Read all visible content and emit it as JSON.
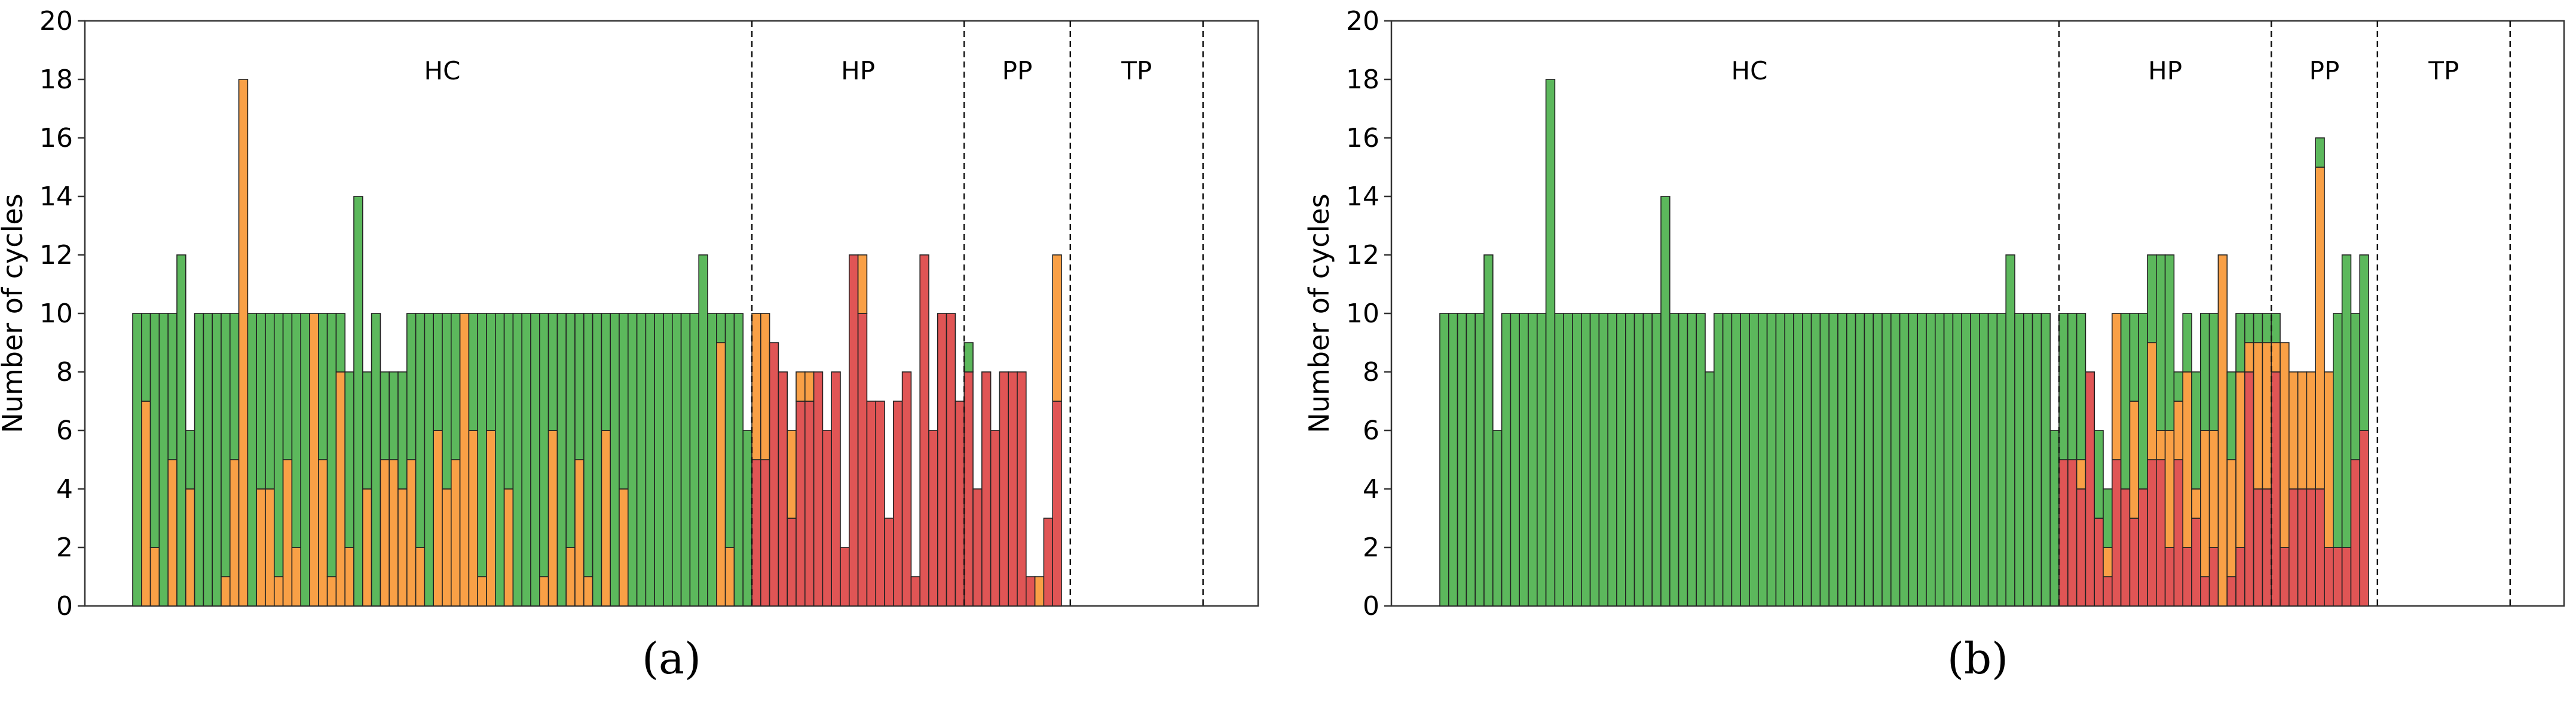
{
  "colors": {
    "green": "#5cb85c",
    "orange": "#f9a046",
    "red": "#e05555",
    "edge": "#222222"
  },
  "chart_data": [
    {
      "type": "bar",
      "stacked": true,
      "panel_label": "(a)",
      "ylabel": "Number of cycles",
      "ylim": [
        0,
        20
      ],
      "yticks": [
        0,
        2,
        4,
        6,
        8,
        10,
        12,
        14,
        16,
        18,
        20
      ],
      "regions": [
        {
          "label": "HC",
          "start": 0,
          "end": 70
        },
        {
          "label": "HP",
          "start": 70,
          "end": 94
        },
        {
          "label": "PP",
          "start": 94,
          "end": 106
        },
        {
          "label": "TP",
          "start": 106,
          "end": 121
        }
      ],
      "series": [
        {
          "name": "red",
          "color": "#e05555",
          "values": [
            0,
            0,
            0,
            0,
            0,
            0,
            0,
            0,
            0,
            0,
            0,
            0,
            0,
            0,
            0,
            0,
            0,
            0,
            0,
            0,
            0,
            0,
            0,
            0,
            0,
            0,
            0,
            0,
            0,
            0,
            0,
            0,
            0,
            0,
            0,
            0,
            0,
            0,
            0,
            0,
            0,
            0,
            0,
            0,
            0,
            0,
            0,
            0,
            0,
            0,
            0,
            0,
            0,
            0,
            0,
            0,
            0,
            0,
            0,
            0,
            0,
            0,
            0,
            0,
            0,
            0,
            0,
            0,
            0,
            0,
            5,
            5,
            9,
            8,
            3,
            7,
            7,
            8,
            6,
            8,
            2,
            12,
            10,
            7,
            7,
            3,
            7,
            8,
            1,
            12,
            6,
            10,
            10,
            7,
            8,
            4,
            8,
            6,
            8,
            8,
            8,
            1,
            0,
            3,
            7
          ]
        },
        {
          "name": "orange",
          "color": "#f9a046",
          "values": [
            0,
            7,
            2,
            0,
            5,
            0,
            4,
            0,
            0,
            0,
            1,
            5,
            18,
            0,
            4,
            4,
            1,
            5,
            2,
            0,
            10,
            5,
            1,
            8,
            2,
            0,
            4,
            0,
            5,
            5,
            4,
            5,
            2,
            0,
            6,
            4,
            5,
            10,
            6,
            1,
            6,
            0,
            4,
            0,
            0,
            0,
            1,
            6,
            0,
            2,
            5,
            1,
            0,
            6,
            0,
            4,
            0,
            0,
            0,
            0,
            0,
            0,
            0,
            0,
            0,
            0,
            9,
            2,
            0,
            0,
            5,
            5,
            0,
            0,
            3,
            1,
            1,
            0,
            0,
            0,
            0,
            0,
            2,
            0,
            0,
            0,
            0,
            0,
            0,
            0,
            0,
            0,
            0,
            0,
            0,
            0,
            0,
            0,
            0,
            0,
            0,
            0,
            1,
            0,
            5
          ]
        },
        {
          "name": "green",
          "color": "#5cb85c",
          "values": [
            10,
            3,
            8,
            10,
            5,
            12,
            2,
            10,
            10,
            10,
            9,
            5,
            0,
            10,
            6,
            6,
            9,
            5,
            8,
            10,
            0,
            5,
            9,
            2,
            6,
            14,
            4,
            10,
            3,
            3,
            4,
            5,
            8,
            10,
            4,
            6,
            5,
            0,
            4,
            9,
            4,
            10,
            6,
            10,
            10,
            10,
            9,
            4,
            10,
            8,
            5,
            9,
            10,
            4,
            10,
            6,
            10,
            10,
            10,
            10,
            10,
            10,
            10,
            10,
            12,
            10,
            1,
            8,
            10,
            6,
            0,
            0,
            0,
            0,
            0,
            0,
            0,
            0,
            0,
            0,
            0,
            0,
            0,
            0,
            0,
            0,
            0,
            0,
            0,
            0,
            0,
            0,
            0,
            0,
            1,
            0,
            0,
            0,
            0,
            0,
            0,
            0,
            0,
            0,
            0
          ]
        }
      ]
    },
    {
      "type": "bar",
      "stacked": true,
      "panel_label": "(b)",
      "ylabel": "Number of cycles",
      "ylim": [
        0,
        20
      ],
      "yticks": [
        0,
        2,
        4,
        6,
        8,
        10,
        12,
        14,
        16,
        18,
        20
      ],
      "regions": [
        {
          "label": "HC",
          "start": 0,
          "end": 70
        },
        {
          "label": "HP",
          "start": 70,
          "end": 94
        },
        {
          "label": "PP",
          "start": 94,
          "end": 106
        },
        {
          "label": "TP",
          "start": 106,
          "end": 121
        }
      ],
      "series": [
        {
          "name": "red",
          "color": "#e05555",
          "values": [
            0,
            0,
            0,
            0,
            0,
            0,
            0,
            0,
            0,
            0,
            0,
            0,
            0,
            0,
            0,
            0,
            0,
            0,
            0,
            0,
            0,
            0,
            0,
            0,
            0,
            0,
            0,
            0,
            0,
            0,
            0,
            0,
            0,
            0,
            0,
            0,
            0,
            0,
            0,
            0,
            0,
            0,
            0,
            0,
            0,
            0,
            0,
            0,
            0,
            0,
            0,
            0,
            0,
            0,
            0,
            0,
            0,
            0,
            0,
            0,
            0,
            0,
            0,
            0,
            0,
            0,
            0,
            0,
            0,
            0,
            5,
            5,
            4,
            8,
            3,
            1,
            5,
            4,
            3,
            4,
            5,
            5,
            2,
            5,
            2,
            3,
            1,
            2,
            0,
            1,
            2,
            8,
            4,
            4,
            8,
            2,
            4,
            4,
            4,
            4,
            2,
            2,
            2,
            5,
            6
          ]
        },
        {
          "name": "orange",
          "color": "#f9a046",
          "values": [
            0,
            0,
            0,
            0,
            0,
            0,
            0,
            0,
            0,
            0,
            0,
            0,
            0,
            0,
            0,
            0,
            0,
            0,
            0,
            0,
            0,
            0,
            0,
            0,
            0,
            0,
            0,
            0,
            0,
            0,
            0,
            0,
            0,
            0,
            0,
            0,
            0,
            0,
            0,
            0,
            0,
            0,
            0,
            0,
            0,
            0,
            0,
            0,
            0,
            0,
            0,
            0,
            0,
            0,
            0,
            0,
            0,
            0,
            0,
            0,
            0,
            0,
            0,
            0,
            0,
            0,
            0,
            0,
            0,
            0,
            0,
            0,
            1,
            0,
            0,
            1,
            5,
            0,
            4,
            0,
            4,
            1,
            4,
            2,
            6,
            1,
            5,
            4,
            12,
            4,
            6,
            1,
            5,
            5,
            1,
            7,
            4,
            4,
            4,
            11,
            6,
            0,
            0,
            0,
            0
          ]
        },
        {
          "name": "green",
          "color": "#5cb85c",
          "values": [
            10,
            10,
            10,
            10,
            10,
            12,
            6,
            10,
            10,
            10,
            10,
            10,
            18,
            10,
            10,
            10,
            10,
            10,
            10,
            10,
            10,
            10,
            10,
            10,
            10,
            14,
            10,
            10,
            10,
            10,
            8,
            10,
            10,
            10,
            10,
            10,
            10,
            10,
            10,
            10,
            10,
            10,
            10,
            10,
            10,
            10,
            10,
            10,
            10,
            10,
            10,
            10,
            10,
            10,
            10,
            10,
            10,
            10,
            10,
            10,
            10,
            10,
            10,
            10,
            12,
            10,
            10,
            10,
            10,
            6,
            5,
            5,
            5,
            0,
            3,
            2,
            0,
            6,
            3,
            6,
            3,
            6,
            6,
            1,
            2,
            4,
            4,
            4,
            0,
            3,
            2,
            1,
            1,
            1,
            1,
            0,
            0,
            0,
            0,
            1,
            0,
            8,
            10,
            5,
            6
          ]
        }
      ]
    }
  ]
}
